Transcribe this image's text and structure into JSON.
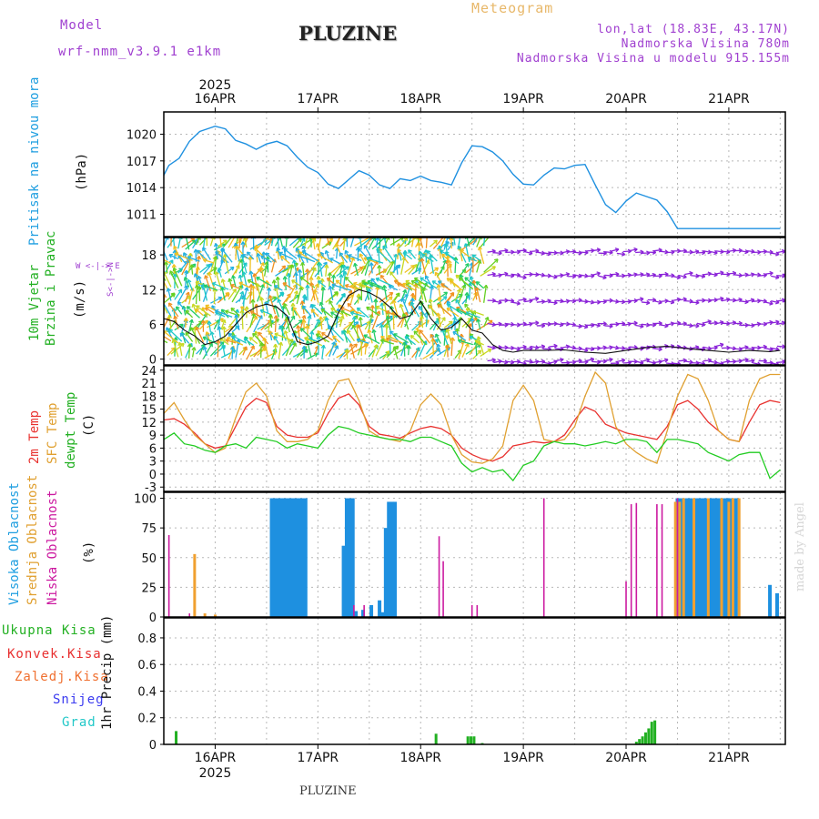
{
  "header": {
    "model_label": "Model",
    "model_name": "wrf-nmm_v3.9.1 e1km",
    "title": "PLUZINE",
    "meteogram_label": "Meteogram",
    "coords": "lon,lat (18.83E, 43.17N)",
    "altitude": "Nadmorska Visina 780m",
    "model_altitude": "Nadmorska Visina u modelu 915.155m"
  },
  "time_axis": {
    "year": "2025",
    "labels": [
      "16APR",
      "17APR",
      "18APR",
      "19APR",
      "20APR",
      "21APR"
    ]
  },
  "footer": {
    "station": "PLUZINE",
    "signature": "made by Angel"
  },
  "panels": {
    "pressure": {
      "label": "Pritisak na nivou mora",
      "unit": "(hPa)",
      "ticks": [
        "1020",
        "1017",
        "1014",
        "1011"
      ]
    },
    "wind": {
      "label1": "10m Vjetar",
      "label2": "Brzina i Pravac",
      "unit": "(m/s)",
      "dir_legend": "W <-|-> E",
      "dir_axis": "S<-|->N",
      "ticks": [
        "18",
        "12",
        "6",
        "0"
      ]
    },
    "temp": {
      "label1": "2m Temp",
      "label2": "SFC Temp",
      "label3": "dewpt Temp",
      "unit": "(C)",
      "ticks": [
        "24",
        "21",
        "18",
        "15",
        "12",
        "9",
        "6",
        "3",
        "0",
        "-3"
      ]
    },
    "cloud": {
      "label1": "Visoka Oblacnost",
      "label2": "Srednja Oblacnost",
      "label3": "Niska Oblacnost",
      "unit": "(%)",
      "ticks": [
        "100",
        "75",
        "50",
        "25",
        "0"
      ]
    },
    "precip": {
      "legend": [
        "Ukupna Kisa",
        "Konvek.Kisa",
        "Zaledj.Kisa",
        "Snijeg",
        "Grad"
      ],
      "unit": "1hr Precip (mm)",
      "ticks": [
        "0.8",
        "0.6",
        "0.4",
        "0.2",
        "0"
      ]
    }
  },
  "colors": {
    "pressure": "#1e90e0",
    "temp2m": "#e8322f",
    "sfc": "#e0a030",
    "dew": "#22cc22",
    "high_cloud": "#1e90e0",
    "mid_cloud": "#f0a030",
    "low_cloud": "#cc1aa0",
    "rain": "#22b022",
    "conv": "#e83030",
    "frz": "#f07030",
    "snow": "#3a3af0",
    "hail": "#22c8c8",
    "header_purple": "#a040d0",
    "meteogram_orange": "#e8b86a"
  },
  "chart_data": [
    {
      "type": "line",
      "title": "",
      "ylabel": "Pritisak na nivou mora (hPa)",
      "x_label_days": [
        "16APR",
        "17APR",
        "18APR",
        "19APR",
        "20APR",
        "21APR"
      ],
      "x_range_days": [
        -0.5,
        5.55
      ],
      "ylim": [
        1008.5,
        1022.5
      ],
      "series": [
        {
          "name": "Pritisak na nivou mora",
          "x": [
            -0.5,
            -0.45,
            -0.35,
            -0.25,
            -0.15,
            -0.05,
            0.0,
            0.1,
            0.2,
            0.3,
            0.4,
            0.5,
            0.6,
            0.7,
            0.8,
            0.9,
            1.0,
            1.1,
            1.2,
            1.3,
            1.4,
            1.5,
            1.6,
            1.7,
            1.8,
            1.9,
            2.0,
            2.1,
            2.2,
            2.3,
            2.4,
            2.5,
            2.6,
            2.7,
            2.8,
            2.9,
            3.0,
            3.1,
            3.2,
            3.3,
            3.4,
            3.5,
            3.6,
            3.7,
            3.8,
            3.9,
            4.0,
            4.1,
            4.2,
            4.3,
            4.4,
            4.5,
            4.6,
            4.7,
            4.8,
            4.9,
            5.0,
            5.1,
            5.2,
            5.3,
            5.4,
            5.5
          ],
          "y": [
            1015.4,
            1016.5,
            1017.3,
            1019.2,
            1020.3,
            1020.7,
            1020.9,
            1020.6,
            1019.3,
            1018.9,
            1018.3,
            1018.9,
            1019.2,
            1018.7,
            1017.4,
            1016.3,
            1015.7,
            1014.4,
            1013.9,
            1014.9,
            1015.9,
            1015.4,
            1014.3,
            1013.9,
            1015.0,
            1014.8,
            1015.3,
            1014.8,
            1014.6,
            1014.3,
            1016.8,
            1018.7,
            1018.6,
            1018.0,
            1017.0,
            1015.5,
            1014.4,
            1014.3,
            1015.4,
            1016.2,
            1016.1,
            1016.5,
            1016.6,
            1014.3,
            1012.1,
            1011.2,
            1012.5,
            1013.4,
            1013.0,
            1012.6,
            1011.3,
            1009.4,
            1009.4,
            1009.4,
            1009.4,
            1009.4,
            1009.4,
            1009.4,
            1009.4,
            1009.4,
            1009.4,
            1009.4
          ]
        }
      ]
    },
    {
      "type": "line",
      "title": "",
      "ylabel": "10m Vjetar Brzina i Pravac (m/s)",
      "x_range_days": [
        -0.5,
        5.55
      ],
      "ylim": [
        -1,
        21
      ],
      "series": [
        {
          "name": "Brzina",
          "x": [
            -0.5,
            -0.4,
            -0.3,
            -0.2,
            -0.1,
            0.0,
            0.1,
            0.2,
            0.3,
            0.4,
            0.5,
            0.6,
            0.7,
            0.8,
            0.9,
            1.0,
            1.1,
            1.2,
            1.3,
            1.4,
            1.5,
            1.6,
            1.7,
            1.8,
            1.9,
            2.0,
            2.1,
            2.2,
            2.3,
            2.4,
            2.5,
            2.6,
            2.7,
            2.8,
            2.9,
            3.0,
            3.2,
            3.4,
            3.6,
            3.8,
            4.0,
            4.2,
            4.4,
            4.6,
            4.8,
            5.0,
            5.2,
            5.4,
            5.5
          ],
          "y": [
            7,
            6.5,
            5,
            4,
            2.5,
            3,
            4,
            6,
            8,
            9,
            9.5,
            9,
            7.5,
            3,
            2.5,
            3,
            4,
            8,
            11,
            12,
            11.5,
            10.5,
            9,
            7,
            7.5,
            10,
            7,
            5,
            5.5,
            7,
            5,
            4.5,
            2.5,
            1.5,
            1.2,
            1.5,
            1.5,
            1.6,
            1.2,
            1.0,
            1.5,
            2,
            2.2,
            1.8,
            1.5,
            1.2,
            1.5,
            1.3,
            1.5
          ]
        }
      ]
    },
    {
      "type": "line",
      "title": "",
      "ylabel": "(C)",
      "x_range_days": [
        -0.5,
        5.55
      ],
      "ylim": [
        -4,
        25
      ],
      "series": [
        {
          "name": "2m Temp",
          "x": [
            -0.5,
            -0.4,
            -0.3,
            -0.2,
            -0.1,
            0.0,
            0.1,
            0.2,
            0.3,
            0.4,
            0.5,
            0.6,
            0.7,
            0.8,
            0.9,
            1.0,
            1.1,
            1.2,
            1.3,
            1.4,
            1.5,
            1.6,
            1.7,
            1.8,
            1.9,
            2.0,
            2.1,
            2.2,
            2.3,
            2.4,
            2.5,
            2.6,
            2.7,
            2.8,
            2.9,
            3.0,
            3.1,
            3.2,
            3.3,
            3.4,
            3.5,
            3.6,
            3.7,
            3.8,
            3.9,
            4.0,
            4.1,
            4.2,
            4.3,
            4.4,
            4.5,
            4.6,
            4.7,
            4.8,
            4.9,
            5.0,
            5.1,
            5.2,
            5.3,
            5.4,
            5.5
          ],
          "y": [
            12.5,
            12.8,
            11.5,
            9.5,
            7,
            6,
            6.5,
            11,
            15.5,
            17.5,
            16.5,
            11,
            9,
            8.5,
            8.5,
            9.5,
            14,
            17.5,
            18.5,
            16,
            11,
            9.2,
            8.8,
            8.3,
            9.5,
            10.5,
            11,
            10.5,
            9,
            6,
            4.5,
            3.5,
            3,
            4,
            6.5,
            7,
            7.5,
            7.2,
            7.5,
            9,
            12.5,
            15.5,
            14.5,
            11.5,
            10.5,
            9.5,
            9,
            8.5,
            8,
            11,
            16,
            17,
            15,
            12,
            10,
            8,
            7.5,
            12,
            16,
            17,
            16.5
          ]
        },
        {
          "name": "SFC Temp",
          "x": [
            -0.5,
            -0.4,
            -0.3,
            -0.2,
            -0.1,
            0.0,
            0.1,
            0.2,
            0.3,
            0.4,
            0.5,
            0.6,
            0.7,
            0.8,
            0.9,
            1.0,
            1.1,
            1.2,
            1.3,
            1.4,
            1.5,
            1.6,
            1.7,
            1.8,
            1.9,
            2.0,
            2.1,
            2.2,
            2.3,
            2.4,
            2.5,
            2.6,
            2.7,
            2.8,
            2.9,
            3.0,
            3.1,
            3.2,
            3.3,
            3.4,
            3.5,
            3.6,
            3.7,
            3.8,
            3.9,
            4.0,
            4.1,
            4.2,
            4.3,
            4.4,
            4.5,
            4.6,
            4.7,
            4.8,
            4.9,
            5.0,
            5.1,
            5.2,
            5.3,
            5.4,
            5.5
          ],
          "y": [
            14,
            16.5,
            12.5,
            9,
            7,
            5,
            6,
            13,
            19,
            21,
            18,
            10,
            7.5,
            7.5,
            8,
            10,
            17,
            21.5,
            22,
            17,
            10,
            8.5,
            8,
            7.5,
            10,
            16,
            18.5,
            16,
            9,
            4.5,
            2.8,
            2.5,
            3.5,
            6.5,
            17,
            20.5,
            17,
            8,
            7.5,
            8,
            11,
            18,
            23.5,
            21,
            11,
            7,
            5,
            3.5,
            2.5,
            10,
            18,
            23,
            22,
            17,
            10,
            8,
            7.5,
            17,
            22,
            23,
            23
          ]
        },
        {
          "name": "dewpt Temp",
          "x": [
            -0.5,
            -0.4,
            -0.3,
            -0.2,
            -0.1,
            0.0,
            0.1,
            0.2,
            0.3,
            0.4,
            0.5,
            0.6,
            0.7,
            0.8,
            0.9,
            1.0,
            1.1,
            1.2,
            1.3,
            1.4,
            1.5,
            1.6,
            1.7,
            1.8,
            1.9,
            2.0,
            2.1,
            2.2,
            2.3,
            2.4,
            2.5,
            2.6,
            2.7,
            2.8,
            2.9,
            3.0,
            3.1,
            3.2,
            3.3,
            3.4,
            3.5,
            3.6,
            3.7,
            3.8,
            3.9,
            4.0,
            4.1,
            4.2,
            4.3,
            4.4,
            4.5,
            4.6,
            4.7,
            4.8,
            4.9,
            5.0,
            5.1,
            5.2,
            5.3,
            5.4,
            5.5
          ],
          "y": [
            8,
            9.5,
            7,
            6.5,
            5.5,
            5,
            6.5,
            7,
            6,
            8.5,
            8,
            7.5,
            6,
            7,
            6.5,
            6,
            9,
            11,
            10.5,
            9.5,
            9,
            8.5,
            8,
            8,
            7.5,
            8.5,
            8.5,
            7.5,
            6.5,
            2.5,
            0.5,
            1.5,
            0.5,
            1,
            -1.5,
            2,
            3,
            6.5,
            7.5,
            7,
            7,
            6.5,
            7,
            7.5,
            7,
            8,
            8,
            7.5,
            5,
            8,
            8,
            7.5,
            7,
            5,
            4,
            3,
            4.5,
            5,
            5,
            -1,
            1
          ]
        }
      ]
    },
    {
      "type": "bar",
      "title": "",
      "ylabel": "(%)",
      "x_range_days": [
        -0.5,
        5.55
      ],
      "ylim": [
        0,
        105
      ],
      "series": [
        {
          "name": "Visoka Oblacnost",
          "x": [
            0.55,
            0.58,
            0.61,
            0.64,
            0.67,
            0.7,
            0.73,
            0.76,
            0.79,
            0.82,
            0.85,
            0.88,
            1.25,
            1.28,
            1.31,
            1.34,
            1.37,
            1.44,
            1.52,
            1.6,
            1.63,
            1.66,
            1.69,
            1.72,
            1.75,
            4.5,
            4.53,
            4.56,
            4.59,
            4.62,
            4.65,
            4.68,
            4.71,
            4.74,
            4.77,
            4.8,
            4.83,
            4.86,
            4.89,
            4.92,
            4.95,
            4.98,
            5.01,
            5.04,
            5.07,
            5.4,
            5.47
          ],
          "y": [
            100,
            100,
            100,
            100,
            100,
            100,
            100,
            100,
            100,
            100,
            100,
            100,
            60,
            100,
            100,
            100,
            5,
            6,
            10,
            14,
            4,
            75,
            97,
            97,
            97,
            100,
            100,
            100,
            100,
            100,
            100,
            100,
            100,
            100,
            100,
            100,
            100,
            100,
            100,
            100,
            100,
            100,
            100,
            100,
            100,
            27,
            20
          ]
        },
        {
          "name": "Srednja Oblacnost",
          "x": [
            -0.2,
            -0.1,
            0.0,
            4.48,
            4.52,
            4.56,
            4.66,
            4.8,
            4.93,
            5.0,
            5.04,
            5.1
          ],
          "y": [
            53,
            3,
            2,
            97,
            97,
            100,
            100,
            100,
            100,
            97,
            100,
            100
          ]
        },
        {
          "name": "Niska Oblacnost",
          "x": [
            -0.45,
            -0.25,
            1.35,
            1.45,
            2.18,
            2.22,
            2.5,
            2.55,
            3.2,
            4.0,
            4.05,
            4.1,
            4.3,
            4.35,
            4.5
          ],
          "y": [
            69,
            3,
            10,
            10,
            68,
            47,
            10,
            10,
            100,
            30,
            95,
            96,
            95,
            95,
            100
          ]
        }
      ]
    },
    {
      "type": "bar",
      "title": "",
      "ylabel": "1hr Precip (mm)",
      "x_range_days": [
        -0.5,
        5.55
      ],
      "ylim": [
        0,
        0.95
      ],
      "series": [
        {
          "name": "Ukupna Kisa",
          "x": [
            -0.38,
            2.15,
            2.46,
            2.49,
            2.52,
            2.6,
            4.1,
            4.13,
            4.16,
            4.19,
            4.22,
            4.25,
            4.28
          ],
          "y": [
            0.1,
            0.08,
            0.06,
            0.06,
            0.06,
            0.01,
            0.02,
            0.04,
            0.06,
            0.09,
            0.12,
            0.17,
            0.18
          ]
        }
      ]
    }
  ]
}
